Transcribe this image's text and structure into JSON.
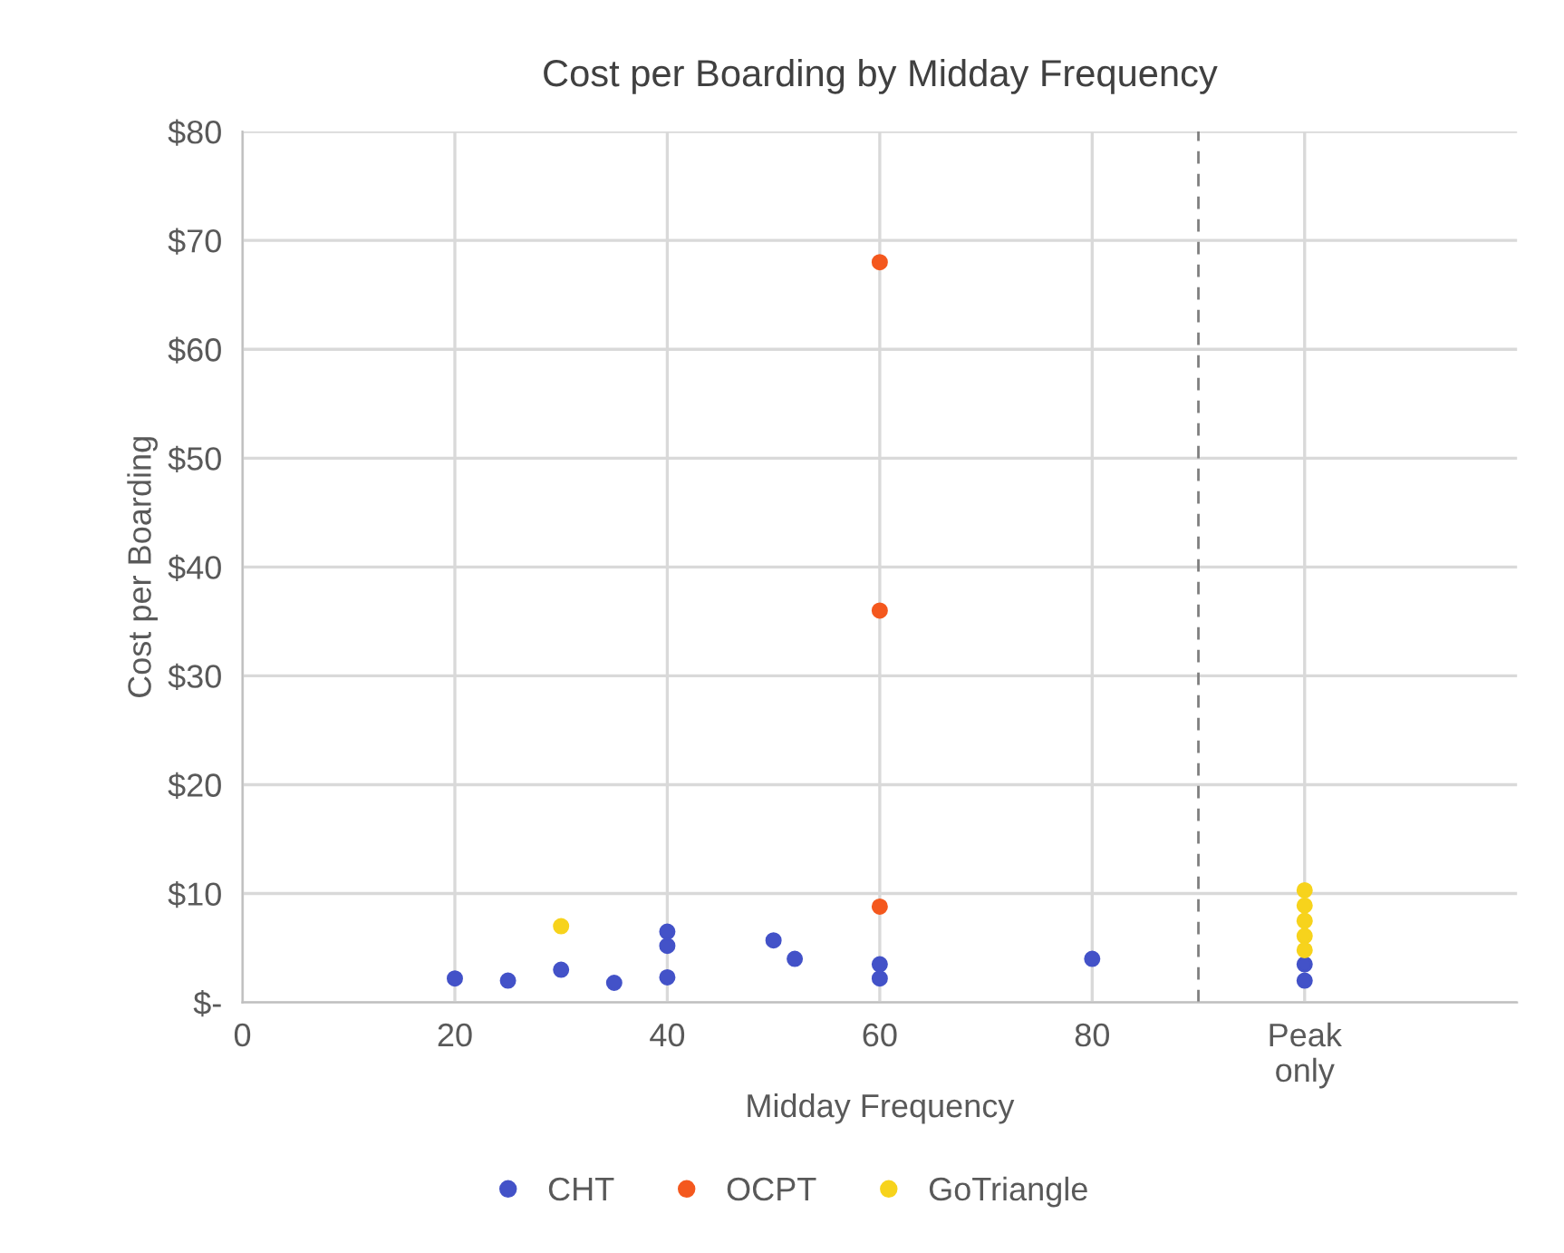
{
  "chart_data": {
    "type": "scatter",
    "title": "Cost per Boarding by Midday Frequency",
    "xlabel": "Midday Frequency",
    "ylabel": "Cost per Boarding",
    "series": [
      {
        "name": "CHT",
        "color": "#4352c8",
        "x": [
          20,
          25,
          30,
          35,
          40,
          40,
          40,
          50,
          52,
          60,
          60,
          80,
          100,
          100
        ],
        "values": [
          2.2,
          2.0,
          3.0,
          1.8,
          2.3,
          5.2,
          6.5,
          5.7,
          4.0,
          3.5,
          2.2,
          4.0,
          2.0,
          3.5
        ]
      },
      {
        "name": "OCPT",
        "color": "#f4581e",
        "x": [
          60,
          60,
          60
        ],
        "values": [
          68,
          36,
          8.8
        ]
      },
      {
        "name": "GoTriangle",
        "color": "#f7d31c",
        "x": [
          30,
          100,
          100,
          100,
          100,
          100
        ],
        "values": [
          7.0,
          10.3,
          8.9,
          7.5,
          6.1,
          4.8
        ]
      }
    ],
    "xlim": [
      0,
      120
    ],
    "xticks": [
      0,
      20,
      40,
      60,
      80,
      {
        "value": 100,
        "label": "Peak\nonly"
      }
    ],
    "ylim": [
      0,
      80
    ],
    "yticks": [
      {
        "value": 0,
        "label": "$-"
      },
      {
        "value": 10,
        "label": "$10"
      },
      {
        "value": 20,
        "label": "$20"
      },
      {
        "value": 30,
        "label": "$30"
      },
      {
        "value": 40,
        "label": "$40"
      },
      {
        "value": 50,
        "label": "$50"
      },
      {
        "value": 60,
        "label": "$60"
      },
      {
        "value": 70,
        "label": "$70"
      },
      {
        "value": 80,
        "label": "$80"
      }
    ],
    "ref_lines": [
      {
        "axis": "x",
        "value": 90,
        "color": "#7f7f7f",
        "line_style": "dashed"
      }
    ],
    "grid": true,
    "legend": "bottom",
    "marker": "circle"
  }
}
